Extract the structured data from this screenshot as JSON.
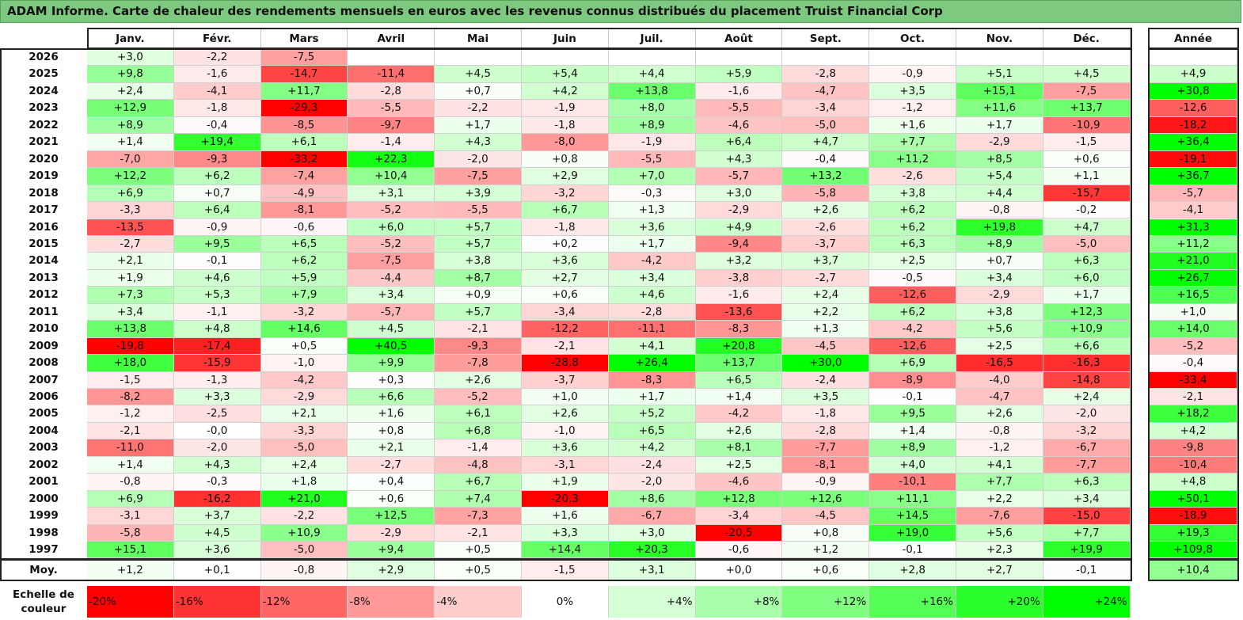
{
  "title": "ADAM Informe. Carte de chaleur des rendements mensuels en euros avec les revenus connus distribués du placement Truist Financial Corp",
  "chart_data": {
    "type": "heatmap",
    "title": "ADAM Informe. Carte de chaleur des rendements mensuels en euros avec les revenus connus distribués du placement Truist Financial Corp",
    "months": [
      "Janv.",
      "Févr.",
      "Mars",
      "Avril",
      "Mai",
      "Juin",
      "Juil.",
      "Août",
      "Sept.",
      "Oct.",
      "Nov.",
      "Déc."
    ],
    "year_header": "Année",
    "rows": [
      {
        "year": "2026",
        "values": [
          "+3,0",
          "-2,2",
          "-7,5",
          "",
          "",
          "",
          "",
          "",
          "",
          "",
          "",
          ""
        ],
        "annual": ""
      },
      {
        "year": "2025",
        "values": [
          "+9,8",
          "-1,6",
          "-14,7",
          "-11,4",
          "+4,5",
          "+5,4",
          "+4,4",
          "+5,9",
          "-2,8",
          "-0,9",
          "+5,1",
          "+4,5"
        ],
        "annual": "+4,9"
      },
      {
        "year": "2024",
        "values": [
          "+2,4",
          "-4,1",
          "+11,7",
          "-2,8",
          "+0,7",
          "+4,2",
          "+13,8",
          "-1,6",
          "-4,7",
          "+3,5",
          "+15,1",
          "-7,5"
        ],
        "annual": "+30,8"
      },
      {
        "year": "2023",
        "values": [
          "+12,9",
          "-1,8",
          "-29,3",
          "-5,5",
          "-2,2",
          "-1,9",
          "+8,0",
          "-5,5",
          "-3,4",
          "-1,2",
          "+11,6",
          "+13,7"
        ],
        "annual": "-12,6"
      },
      {
        "year": "2022",
        "values": [
          "+8,9",
          "-0,4",
          "-8,5",
          "-9,7",
          "+1,7",
          "-1,8",
          "+8,9",
          "-4,6",
          "-5,0",
          "+1,6",
          "+1,7",
          "-10,9"
        ],
        "annual": "-18,2"
      },
      {
        "year": "2021",
        "values": [
          "+1,4",
          "+19,4",
          "+6,1",
          "-1,4",
          "+4,3",
          "-8,0",
          "-1,9",
          "+6,4",
          "+4,7",
          "+7,7",
          "-2,9",
          "-1,5"
        ],
        "annual": "+36,4"
      },
      {
        "year": "2020",
        "values": [
          "-7,0",
          "-9,3",
          "-33,2",
          "+22,3",
          "-2,0",
          "+0,8",
          "-5,5",
          "+4,3",
          "-0,4",
          "+11,2",
          "+8,5",
          "+0,6"
        ],
        "annual": "-19,1"
      },
      {
        "year": "2019",
        "values": [
          "+12,2",
          "+6,2",
          "-7,4",
          "+10,4",
          "-7,5",
          "+2,9",
          "+7,0",
          "-5,7",
          "+13,2",
          "-2,6",
          "+5,4",
          "+1,1"
        ],
        "annual": "+36,7"
      },
      {
        "year": "2018",
        "values": [
          "+6,9",
          "+0,7",
          "-4,9",
          "+3,1",
          "+3,9",
          "-3,2",
          "-0,3",
          "+3,0",
          "-5,8",
          "+3,8",
          "+4,4",
          "-15,7"
        ],
        "annual": "-5,7"
      },
      {
        "year": "2017",
        "values": [
          "-3,3",
          "+6,4",
          "-8,1",
          "-5,2",
          "-5,5",
          "+6,7",
          "+1,3",
          "-2,9",
          "+2,6",
          "+6,2",
          "-0,8",
          "-0,2"
        ],
        "annual": "-4,1"
      },
      {
        "year": "2016",
        "values": [
          "-13,5",
          "-0,9",
          "-0,6",
          "+6,0",
          "+5,7",
          "-1,8",
          "+3,6",
          "+4,9",
          "-2,6",
          "+6,2",
          "+19,8",
          "+4,7"
        ],
        "annual": "+31,3"
      },
      {
        "year": "2015",
        "values": [
          "-2,7",
          "+9,5",
          "+6,5",
          "-5,2",
          "+5,7",
          "+0,2",
          "+1,7",
          "-9,4",
          "-3,7",
          "+6,3",
          "+8,9",
          "-5,0"
        ],
        "annual": "+11,2"
      },
      {
        "year": "2014",
        "values": [
          "+2,1",
          "-0,1",
          "+6,2",
          "-7,5",
          "+3,8",
          "+3,6",
          "-4,2",
          "+3,2",
          "+3,7",
          "+2,5",
          "+0,7",
          "+6,3"
        ],
        "annual": "+21,0"
      },
      {
        "year": "2013",
        "values": [
          "+1,9",
          "+4,6",
          "+5,9",
          "-4,4",
          "+8,7",
          "+2,7",
          "+3,4",
          "-3,8",
          "-2,7",
          "-0,5",
          "+3,4",
          "+6,0"
        ],
        "annual": "+26,7"
      },
      {
        "year": "2012",
        "values": [
          "+7,3",
          "+5,3",
          "+7,9",
          "+3,4",
          "+0,9",
          "+0,6",
          "+4,6",
          "-1,6",
          "+2,4",
          "-12,6",
          "-2,9",
          "+1,7"
        ],
        "annual": "+16,5"
      },
      {
        "year": "2011",
        "values": [
          "+3,4",
          "-1,1",
          "-3,2",
          "-5,7",
          "+5,7",
          "-3,4",
          "-2,8",
          "-13,6",
          "+2,2",
          "+6,2",
          "+3,8",
          "+12,3"
        ],
        "annual": "+1,0"
      },
      {
        "year": "2010",
        "values": [
          "+13,8",
          "+4,8",
          "+14,6",
          "+4,5",
          "-2,1",
          "-12,2",
          "-11,1",
          "-8,3",
          "+1,3",
          "-4,2",
          "+5,6",
          "+10,9"
        ],
        "annual": "+14,0"
      },
      {
        "year": "2009",
        "values": [
          "-19,8",
          "-17,4",
          "+0,5",
          "+40,5",
          "-9,3",
          "-2,1",
          "+4,1",
          "+20,8",
          "-4,5",
          "-12,6",
          "+2,5",
          "+6,6"
        ],
        "annual": "-5,2"
      },
      {
        "year": "2008",
        "values": [
          "+18,0",
          "-15,9",
          "-1,0",
          "+9,9",
          "-7,8",
          "-28,8",
          "+26,4",
          "+13,7",
          "+30,0",
          "+6,9",
          "-16,5",
          "-16,3"
        ],
        "annual": "-0,4"
      },
      {
        "year": "2007",
        "values": [
          "-1,5",
          "-1,3",
          "-4,2",
          "+0,3",
          "+2,6",
          "-3,7",
          "-8,3",
          "+6,5",
          "-2,4",
          "-8,9",
          "-4,0",
          "-14,8"
        ],
        "annual": "-33,4"
      },
      {
        "year": "2006",
        "values": [
          "-8,2",
          "+3,3",
          "-2,9",
          "+6,6",
          "-5,2",
          "+1,0",
          "+1,7",
          "+1,4",
          "+3,5",
          "-0,1",
          "-4,7",
          "+2,4"
        ],
        "annual": "-2,1"
      },
      {
        "year": "2005",
        "values": [
          "-1,2",
          "-2,5",
          "+2,1",
          "+1,6",
          "+6,1",
          "+2,6",
          "+5,2",
          "-4,2",
          "-1,8",
          "+9,5",
          "+2,6",
          "-2,0"
        ],
        "annual": "+18,2"
      },
      {
        "year": "2004",
        "values": [
          "-2,1",
          "-0,0",
          "-3,3",
          "+0,8",
          "+6,8",
          "-1,0",
          "+6,5",
          "+2,6",
          "-2,8",
          "+1,4",
          "-0,8",
          "-3,2"
        ],
        "annual": "+4,2"
      },
      {
        "year": "2003",
        "values": [
          "-11,0",
          "-2,0",
          "-5,0",
          "+2,1",
          "-1,4",
          "+3,6",
          "+4,2",
          "+8,1",
          "-7,7",
          "+8,9",
          "-1,2",
          "-6,7"
        ],
        "annual": "-9,8"
      },
      {
        "year": "2002",
        "values": [
          "+1,4",
          "+4,3",
          "+2,4",
          "-2,7",
          "-4,8",
          "-3,1",
          "-2,4",
          "+2,5",
          "-8,1",
          "+4,0",
          "+4,1",
          "-7,7"
        ],
        "annual": "-10,4"
      },
      {
        "year": "2001",
        "values": [
          "-0,8",
          "-0,3",
          "+1,8",
          "+0,4",
          "+6,7",
          "+1,9",
          "-2,0",
          "-4,6",
          "-0,9",
          "-10,1",
          "+7,7",
          "+6,3"
        ],
        "annual": "+4,8"
      },
      {
        "year": "2000",
        "values": [
          "+6,9",
          "-16,2",
          "+21,0",
          "+0,6",
          "+7,4",
          "-20,3",
          "+8,6",
          "+12,8",
          "+12,6",
          "+11,1",
          "+2,2",
          "+3,4"
        ],
        "annual": "+50,1"
      },
      {
        "year": "1999",
        "values": [
          "-3,1",
          "+3,7",
          "-2,2",
          "+12,5",
          "-7,3",
          "+1,6",
          "-6,7",
          "-3,4",
          "-4,5",
          "+14,5",
          "-7,6",
          "-15,0"
        ],
        "annual": "-18,9"
      },
      {
        "year": "1998",
        "values": [
          "-5,8",
          "+4,5",
          "+10,9",
          "-2,9",
          "-2,1",
          "+3,3",
          "+3,0",
          "-20,5",
          "+0,8",
          "+19,0",
          "+5,6",
          "+7,7"
        ],
        "annual": "+19,3"
      },
      {
        "year": "1997",
        "values": [
          "+15,1",
          "+3,6",
          "-5,0",
          "+9,4",
          "+0,5",
          "+14,4",
          "+20,3",
          "-0,6",
          "+1,2",
          "-0,1",
          "+2,3",
          "+19,9"
        ],
        "annual": "+109,8"
      }
    ],
    "average": {
      "label": "Moy.",
      "values": [
        "+1,2",
        "+0,1",
        "-0,8",
        "+2,9",
        "+0,5",
        "-1,5",
        "+3,1",
        "+0,0",
        "+0,6",
        "+2,8",
        "+2,7",
        "-0,1"
      ],
      "annual": "+10,4"
    },
    "color_scale": {
      "label_line1": "Echelle de",
      "label_line2": "couleur",
      "steps": [
        {
          "label": "-20%",
          "value": -20
        },
        {
          "label": "-16%",
          "value": -16
        },
        {
          "label": "-12%",
          "value": -12
        },
        {
          "label": "-8%",
          "value": -8
        },
        {
          "label": "-4%",
          "value": -4
        },
        {
          "label": "0%",
          "value": 0
        },
        {
          "label": "+4%",
          "value": 4
        },
        {
          "label": "+8%",
          "value": 8
        },
        {
          "label": "+12%",
          "value": 12
        },
        {
          "label": "+16%",
          "value": 16
        },
        {
          "label": "+20%",
          "value": 20
        },
        {
          "label": "+24%",
          "value": 24
        }
      ]
    }
  }
}
